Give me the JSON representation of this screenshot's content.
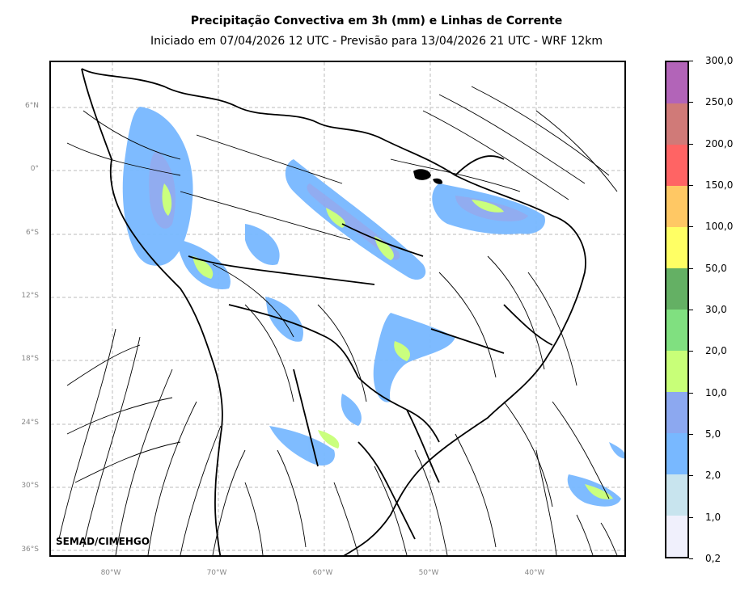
{
  "title": "Precipitação Convectiva em 3h (mm) e Linhas de Corrente",
  "subtitle": "Iniciado em 07/04/2026 12 UTC - Previsão para 13/04/2026 21 UTC - WRF 12km",
  "credit": "SEMAD/CIMEHGO",
  "lat_labels": [
    "6°N",
    "0°",
    "6°S",
    "12°S",
    "18°S",
    "24°S",
    "30°S",
    "36°S"
  ],
  "lon_labels": [
    "80°W",
    "70°W",
    "60°W",
    "50°W",
    "40°W"
  ],
  "colorbar": {
    "labels": [
      "300,0",
      "250,0",
      "200,0",
      "150,0",
      "100,0",
      "50,0",
      "30,0",
      "20,0",
      "10,0",
      "5,0",
      "2,0",
      "1,0",
      "0,2"
    ],
    "colors": [
      "#b264b8",
      "#d07a78",
      "#ff6464",
      "#ffc864",
      "#ffff64",
      "#64b064",
      "#80e080",
      "#c8ff78",
      "#8ca8f0",
      "#78b8ff",
      "#c8e4ee",
      "#f0f0fc"
    ]
  }
}
